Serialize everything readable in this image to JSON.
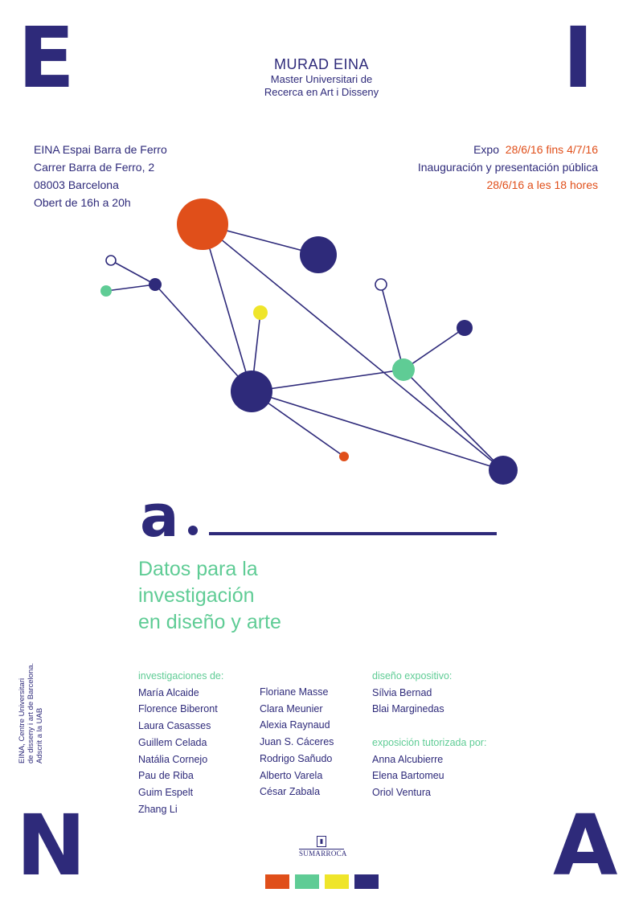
{
  "corner_letters": {
    "top_left": "E",
    "top_right": "I",
    "bottom_left": "N",
    "bottom_right": "A"
  },
  "header": {
    "title": "MURAD EINA",
    "subtitle_line1": "Master Universitari de",
    "subtitle_line2": "Recerca en Art i Disseny"
  },
  "venue": {
    "line1": "EINA  Espai Barra de Ferro",
    "line2": "Carrer Barra de Ferro, 2",
    "line3": "08003 Barcelona",
    "line4": "Obert de 16h a 20h"
  },
  "expo": {
    "label": "Expo",
    "dates": "28/6/16 fins 4/7/16",
    "inauguration": "Inauguración y presentación pública",
    "inauguration_time": "28/6/16 a les 18 hores"
  },
  "logo": {
    "letter": "a"
  },
  "tagline": {
    "line1": "Datos para la",
    "line2": "investigación",
    "line3": "en diseño y arte"
  },
  "side_text": {
    "line1": "EINA, Centre Universitari",
    "line2": "de disseny i art de Barcelona.",
    "line3": "Adscrit a la UAB"
  },
  "credits": {
    "research_heading": "investigaciones de:",
    "research_col1": [
      "María Alcaide",
      "Florence Biberont",
      "Laura Casasses",
      "Guillem Celada",
      "Natália Cornejo",
      "Pau de Riba",
      "Guim Espelt",
      "Zhang Li"
    ],
    "research_col2": [
      "Floriane Masse",
      "Clara Meunier",
      "Alexia Raynaud",
      "Juan S. Cáceres",
      "Rodrigo Sañudo",
      "Alberto Varela",
      "César Zabala"
    ],
    "design_heading": "diseño expositivo:",
    "design_names": [
      "Sílvia Bernad",
      "Blai Marginedas"
    ],
    "tutored_heading": "exposición tutorizada por:",
    "tutored_names": [
      "Anna Alcubierre",
      "Elena Bartomeu",
      "Oriol Ventura"
    ]
  },
  "sponsor": {
    "name": "SUMARROCA"
  },
  "colors": {
    "navy": "#2e2a7a",
    "orange": "#e04f1a",
    "green": "#5fcc95",
    "yellow": "#efe52a"
  },
  "swatches": [
    "#e04f1a",
    "#5fcc95",
    "#efe52a",
    "#2e2a7a"
  ]
}
